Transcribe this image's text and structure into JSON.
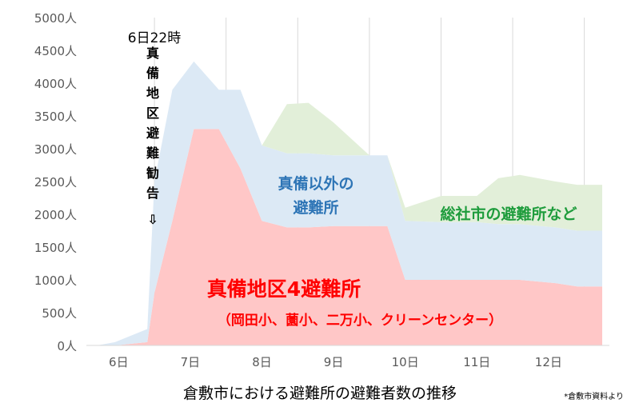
{
  "chart_data": {
    "type": "area",
    "stacked": true,
    "title": "倉敷市における避難所の避難者数の推移",
    "source_note": "*倉敷市資料より",
    "xlabel": "",
    "ylabel": "",
    "x_tick_labels": [
      "6日",
      "7日",
      "8日",
      "9日",
      "10日",
      "11日",
      "12日"
    ],
    "x_tick_positions": [
      6,
      7,
      8,
      9,
      10,
      11,
      12
    ],
    "xlim": [
      5.55,
      12.85
    ],
    "ylim": [
      0,
      5000
    ],
    "y_ticks": [
      0,
      500,
      1000,
      1500,
      2000,
      2500,
      3000,
      3500,
      4000,
      4500,
      5000
    ],
    "y_tick_suffix": "人",
    "grid": "vertical",
    "x": [
      5.7,
      5.95,
      6.4,
      6.5,
      6.75,
      7.05,
      7.4,
      7.7,
      8.0,
      8.35,
      8.65,
      9.0,
      9.5,
      9.75,
      10.0,
      10.5,
      11.0,
      11.3,
      11.6,
      12.1,
      12.4,
      12.75
    ],
    "series": [
      {
        "name": "真備地区4避難所",
        "sub_label": "（岡田小、薗小、二万小、クリーンセンター）",
        "color": "#ffc7c7",
        "label_color": "#ff0000",
        "values": [
          0,
          0,
          50,
          800,
          1900,
          3300,
          3300,
          2700,
          1900,
          1800,
          1800,
          1820,
          1820,
          1820,
          1000,
          1000,
          1000,
          1000,
          1000,
          950,
          900,
          900
        ]
      },
      {
        "name": "真備以外の避難所",
        "color": "#dce9f5",
        "label_color": "#2e75b6",
        "values": [
          0,
          50,
          200,
          1700,
          2000,
          1030,
          600,
          1200,
          1150,
          1130,
          1130,
          1080,
          1080,
          1080,
          900,
          880,
          880,
          850,
          850,
          850,
          850,
          850
        ]
      },
      {
        "name": "総社市の避難所など",
        "color": "#e2efd9",
        "label_color": "#1e9c3c",
        "values": [
          0,
          0,
          0,
          0,
          0,
          0,
          0,
          0,
          0,
          750,
          770,
          500,
          0,
          0,
          200,
          400,
          400,
          700,
          750,
          700,
          700,
          700
        ]
      }
    ],
    "annotations": {
      "event_time": "6日22時",
      "event_text": "真備地区避難勧告",
      "event_arrow": "⇩"
    }
  }
}
